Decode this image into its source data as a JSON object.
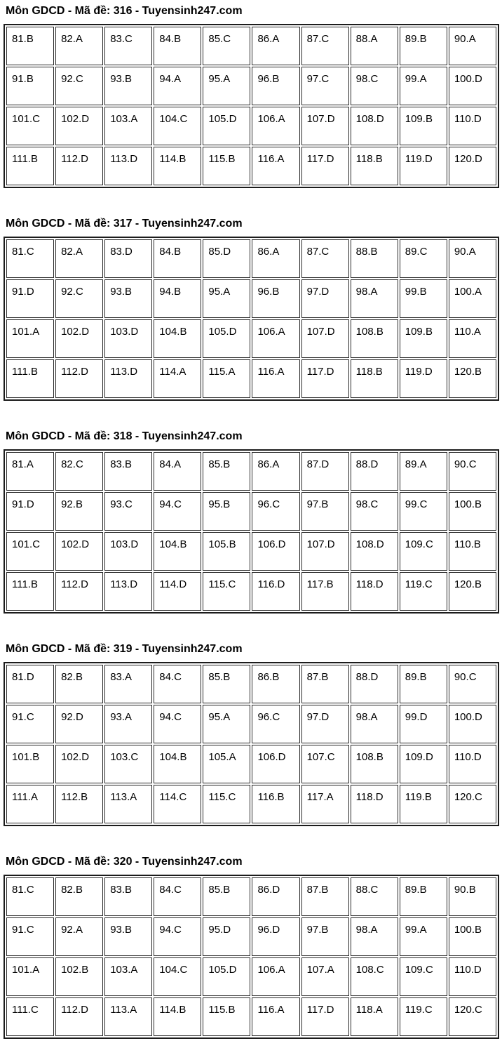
{
  "colors": {
    "background": "#ffffff",
    "text": "#000000",
    "table_border": "#1c1c1c",
    "cell_border": "#2a2a2a"
  },
  "sections": [
    {
      "title": "Môn GDCD - Mã đề: 316 - Tuyensinh247.com",
      "rows": [
        [
          "81.B",
          "82.A",
          "83.C",
          "84.B",
          "85.C",
          "86.A",
          "87.C",
          "88.A",
          "89.B",
          "90.A"
        ],
        [
          "91.B",
          "92.C",
          "93.B",
          "94.A",
          "95.A",
          "96.B",
          "97.C",
          "98.C",
          "99.A",
          "100.D"
        ],
        [
          "101.C",
          "102.D",
          "103.A",
          "104.C",
          "105.D",
          "106.A",
          "107.D",
          "108.D",
          "109.B",
          "110.D"
        ],
        [
          "111.B",
          "112.D",
          "113.D",
          "114.B",
          "115.B",
          "116.A",
          "117.D",
          "118.B",
          "119.D",
          "120.D"
        ]
      ]
    },
    {
      "title": "Môn GDCD - Mã đề: 317 - Tuyensinh247.com",
      "rows": [
        [
          "81.C",
          "82.A",
          "83.D",
          "84.B",
          "85.D",
          "86.A",
          "87.C",
          "88.B",
          "89.C",
          "90.A"
        ],
        [
          "91.D",
          "92.C",
          "93.B",
          "94.B",
          "95.A",
          "96.B",
          "97.D",
          "98.A",
          "99.B",
          "100.A"
        ],
        [
          "101.A",
          "102.D",
          "103.D",
          "104.B",
          "105.D",
          "106.A",
          "107.D",
          "108.B",
          "109.B",
          "110.A"
        ],
        [
          "111.B",
          "112.D",
          "113.D",
          "114.A",
          "115.A",
          "116.A",
          "117.D",
          "118.B",
          "119.D",
          "120.B"
        ]
      ]
    },
    {
      "title": "Môn GDCD - Mã đề: 318 - Tuyensinh247.com",
      "rows": [
        [
          "81.A",
          "82.C",
          "83.B",
          "84.A",
          "85.B",
          "86.A",
          "87.D",
          "88.D",
          "89.A",
          "90.C"
        ],
        [
          "91.D",
          "92.B",
          "93.C",
          "94.C",
          "95.B",
          "96.C",
          "97.B",
          "98.C",
          "99.C",
          "100.B"
        ],
        [
          "101.C",
          "102.D",
          "103.D",
          "104.B",
          "105.B",
          "106.D",
          "107.D",
          "108.D",
          "109.C",
          "110.B"
        ],
        [
          "111.B",
          "112.D",
          "113.D",
          "114.D",
          "115.C",
          "116.D",
          "117.B",
          "118.D",
          "119.C",
          "120.B"
        ]
      ]
    },
    {
      "title": "Môn GDCD - Mã đề: 319 - Tuyensinh247.com",
      "rows": [
        [
          "81.D",
          "82.B",
          "83.A",
          "84.C",
          "85.B",
          "86.B",
          "87.B",
          "88.D",
          "89.B",
          "90.C"
        ],
        [
          "91.C",
          "92.D",
          "93.A",
          "94.C",
          "95.A",
          "96.C",
          "97.D",
          "98.A",
          "99.D",
          "100.D"
        ],
        [
          "101.B",
          "102.D",
          "103.C",
          "104.B",
          "105.A",
          "106.D",
          "107.C",
          "108.B",
          "109.D",
          "110.D"
        ],
        [
          "111.A",
          "112.B",
          "113.A",
          "114.C",
          "115.C",
          "116.B",
          "117.A",
          "118.D",
          "119.B",
          "120.C"
        ]
      ]
    },
    {
      "title": "Môn GDCD - Mã đề: 320 - Tuyensinh247.com",
      "rows": [
        [
          "81.C",
          "82.B",
          "83.B",
          "84.C",
          "85.B",
          "86.D",
          "87.B",
          "88.C",
          "89.B",
          "90.B"
        ],
        [
          "91.C",
          "92.A",
          "93.B",
          "94.C",
          "95.D",
          "96.D",
          "97.B",
          "98.A",
          "99.A",
          "100.B"
        ],
        [
          "101.A",
          "102.B",
          "103.A",
          "104.C",
          "105.D",
          "106.A",
          "107.A",
          "108.C",
          "109.C",
          "110.D"
        ],
        [
          "111.C",
          "112.D",
          "113.A",
          "114.B",
          "115.B",
          "116.A",
          "117.D",
          "118.A",
          "119.C",
          "120.C"
        ]
      ]
    }
  ]
}
